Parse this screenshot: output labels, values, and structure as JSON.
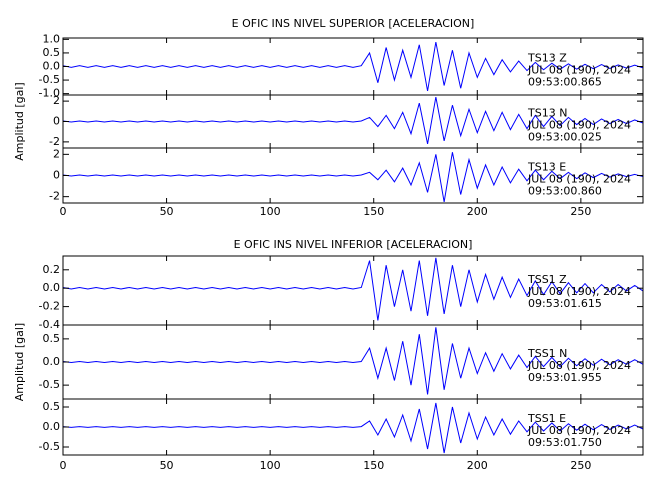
{
  "chart_data": [
    {
      "type": "line",
      "title": "E OFIC INS NIVEL SUPERIOR [ACELERACION]",
      "y_label": "Amplitud [gal]",
      "color": "#0000ff",
      "x": [
        0,
        4,
        8,
        12,
        16,
        20,
        24,
        28,
        32,
        36,
        40,
        44,
        48,
        52,
        56,
        60,
        64,
        68,
        72,
        76,
        80,
        84,
        88,
        92,
        96,
        100,
        104,
        108,
        112,
        116,
        120,
        124,
        128,
        132,
        136,
        140,
        144,
        148,
        152,
        156,
        160,
        164,
        168,
        172,
        176,
        180,
        184,
        188,
        192,
        196,
        200,
        204,
        208,
        212,
        216,
        220,
        224,
        228,
        232,
        236,
        240,
        244,
        248,
        252,
        256,
        260,
        264,
        268,
        272,
        276,
        280
      ],
      "xlim": [
        0,
        280
      ],
      "xticks": [
        0,
        50,
        100,
        150,
        200,
        250
      ],
      "panels": [
        {
          "ylim": [
            -1.05,
            1.05
          ],
          "yticks": [
            {
              "value": -1,
              "label": "-1.0"
            },
            -0.5,
            {
              "value": 0,
              "label": "0.0"
            },
            0.5,
            {
              "value": 1,
              "label": "1.0"
            }
          ],
          "labels": [
            "TS13   Z",
            "JUL 08 (190), 2024",
            "09:53:00.865"
          ],
          "values": [
            0.03,
            -0.03,
            0.03,
            -0.03,
            0.03,
            -0.03,
            0.03,
            -0.03,
            0.03,
            -0.03,
            0.03,
            -0.03,
            0.03,
            -0.03,
            0.03,
            -0.03,
            0.03,
            -0.03,
            0.03,
            -0.03,
            0.03,
            -0.03,
            0.03,
            -0.03,
            0.03,
            -0.03,
            0.03,
            -0.03,
            0.03,
            -0.03,
            0.03,
            -0.03,
            0.03,
            -0.03,
            0.03,
            -0.03,
            0.03,
            0.5,
            -0.6,
            0.7,
            -0.5,
            0.6,
            -0.4,
            0.8,
            -0.9,
            0.9,
            -0.7,
            0.6,
            -0.8,
            0.5,
            -0.4,
            0.3,
            -0.3,
            0.25,
            -0.2,
            0.2,
            -0.15,
            0.15,
            -0.12,
            0.12,
            -0.1,
            0.1,
            -0.1,
            0.08,
            -0.08,
            0.07,
            -0.07,
            0.06,
            -0.06,
            0.05,
            -0.05
          ]
        },
        {
          "ylim": [
            -2.6,
            2.6
          ],
          "yticks": [
            -2,
            0,
            2
          ],
          "labels": [
            "TS13   N",
            "JUL 08 (190), 2024",
            "09:53:00.025"
          ],
          "values": [
            0.05,
            -0.05,
            0.05,
            -0.05,
            0.05,
            -0.05,
            0.05,
            -0.05,
            0.05,
            -0.05,
            0.05,
            -0.05,
            0.05,
            -0.05,
            0.05,
            -0.05,
            0.05,
            -0.05,
            0.05,
            -0.05,
            0.05,
            -0.05,
            0.05,
            -0.05,
            0.05,
            -0.05,
            0.05,
            -0.05,
            0.05,
            -0.05,
            0.05,
            -0.05,
            0.05,
            -0.05,
            0.05,
            -0.05,
            0.05,
            0.4,
            -0.5,
            0.6,
            -0.7,
            0.9,
            -1.2,
            1.8,
            -2.2,
            2.4,
            -1.9,
            1.6,
            -1.4,
            1.2,
            -1.1,
            1.0,
            -0.9,
            0.9,
            -0.8,
            0.7,
            -0.7,
            0.6,
            -0.5,
            0.5,
            -0.4,
            0.4,
            -0.3,
            0.3,
            -0.3,
            0.25,
            -0.2,
            0.2,
            -0.2,
            0.15,
            -0.15
          ]
        },
        {
          "ylim": [
            -2.6,
            2.6
          ],
          "yticks": [
            -2,
            0,
            2
          ],
          "labels": [
            "TS13   E",
            "JUL 08 (190), 2024",
            "09:53:00.860"
          ],
          "values": [
            0.05,
            -0.05,
            0.05,
            -0.05,
            0.05,
            -0.05,
            0.05,
            -0.05,
            0.05,
            -0.05,
            0.05,
            -0.05,
            0.05,
            -0.05,
            0.05,
            -0.05,
            0.05,
            -0.05,
            0.05,
            -0.05,
            0.05,
            -0.05,
            0.05,
            -0.05,
            0.05,
            -0.05,
            0.05,
            -0.05,
            0.05,
            -0.05,
            0.05,
            -0.05,
            0.05,
            -0.05,
            0.05,
            -0.05,
            0.05,
            0.3,
            -0.4,
            0.5,
            -0.6,
            0.7,
            -0.9,
            1.2,
            -1.6,
            2.0,
            -2.5,
            2.2,
            -1.8,
            1.5,
            -1.2,
            1.0,
            -0.9,
            0.8,
            -0.7,
            0.6,
            -0.5,
            0.5,
            -0.4,
            0.4,
            -0.3,
            0.3,
            -0.3,
            0.25,
            -0.2,
            0.2,
            -0.15,
            0.15,
            -0.1,
            0.1,
            -0.1
          ]
        }
      ]
    },
    {
      "type": "line",
      "title": "E OFIC INS NIVEL INFERIOR [ACELERACION]",
      "y_label": "Amplitud [gal]",
      "color": "#0000ff",
      "x": [
        0,
        4,
        8,
        12,
        16,
        20,
        24,
        28,
        32,
        36,
        40,
        44,
        48,
        52,
        56,
        60,
        64,
        68,
        72,
        76,
        80,
        84,
        88,
        92,
        96,
        100,
        104,
        108,
        112,
        116,
        120,
        124,
        128,
        132,
        136,
        140,
        144,
        148,
        152,
        156,
        160,
        164,
        168,
        172,
        176,
        180,
        184,
        188,
        192,
        196,
        200,
        204,
        208,
        212,
        216,
        220,
        224,
        228,
        232,
        236,
        240,
        244,
        248,
        252,
        256,
        260,
        264,
        268,
        272,
        276,
        280
      ],
      "xlim": [
        0,
        280
      ],
      "xticks": [
        0,
        50,
        100,
        150,
        200,
        250
      ],
      "panels": [
        {
          "ylim": [
            -0.4,
            0.35
          ],
          "yticks": [
            -0.4,
            -0.2,
            {
              "value": 0,
              "label": "0.0"
            },
            0.2
          ],
          "labels": [
            "TSS1   Z",
            "JUL 08 (190), 2024",
            "09:53:01.615"
          ],
          "values": [
            0.008,
            -0.008,
            0.008,
            -0.008,
            0.008,
            -0.008,
            0.008,
            -0.008,
            0.008,
            -0.008,
            0.008,
            -0.008,
            0.008,
            -0.008,
            0.008,
            -0.008,
            0.008,
            -0.008,
            0.008,
            -0.008,
            0.008,
            -0.008,
            0.008,
            -0.008,
            0.008,
            -0.008,
            0.008,
            -0.008,
            0.008,
            -0.008,
            0.008,
            -0.008,
            0.008,
            -0.008,
            0.008,
            -0.008,
            0.008,
            0.3,
            -0.35,
            0.25,
            -0.2,
            0.2,
            -0.25,
            0.3,
            -0.3,
            0.33,
            -0.28,
            0.25,
            -0.2,
            0.2,
            -0.15,
            0.15,
            -0.12,
            0.12,
            -0.1,
            0.1,
            -0.08,
            0.08,
            -0.07,
            0.07,
            -0.06,
            0.06,
            -0.05,
            0.05,
            -0.05,
            0.04,
            -0.04,
            0.04,
            -0.03,
            0.03,
            -0.03
          ]
        },
        {
          "ylim": [
            -0.8,
            0.8
          ],
          "yticks": [
            -0.5,
            {
              "value": 0,
              "label": "0.0"
            },
            0.5
          ],
          "labels": [
            "TSS1   N",
            "JUL 08 (190), 2024",
            "09:53:01.955"
          ],
          "values": [
            0.01,
            -0.01,
            0.01,
            -0.01,
            0.01,
            -0.01,
            0.01,
            -0.01,
            0.01,
            -0.01,
            0.01,
            -0.01,
            0.01,
            -0.01,
            0.01,
            -0.01,
            0.01,
            -0.01,
            0.01,
            -0.01,
            0.01,
            -0.01,
            0.01,
            -0.01,
            0.01,
            -0.01,
            0.01,
            -0.01,
            0.01,
            -0.01,
            0.01,
            -0.01,
            0.01,
            -0.01,
            0.01,
            -0.01,
            0.01,
            0.3,
            -0.35,
            0.3,
            -0.4,
            0.45,
            -0.5,
            0.6,
            -0.7,
            0.75,
            -0.6,
            0.4,
            -0.35,
            0.3,
            -0.25,
            0.2,
            -0.2,
            0.18,
            -0.15,
            0.15,
            -0.12,
            0.12,
            -0.1,
            0.1,
            -0.1,
            0.08,
            -0.08,
            0.07,
            -0.07,
            0.06,
            -0.06,
            0.05,
            -0.05,
            0.05,
            -0.05
          ]
        },
        {
          "ylim": [
            -0.7,
            0.7
          ],
          "yticks": [
            -0.5,
            {
              "value": 0,
              "label": "0.0"
            },
            0.5
          ],
          "labels": [
            "TSS1   E",
            "JUL 08 (190), 2024",
            "09:53:01.750"
          ],
          "values": [
            0.01,
            -0.01,
            0.01,
            -0.01,
            0.01,
            -0.01,
            0.01,
            -0.01,
            0.01,
            -0.01,
            0.01,
            -0.01,
            0.01,
            -0.01,
            0.01,
            -0.01,
            0.01,
            -0.01,
            0.01,
            -0.01,
            0.01,
            -0.01,
            0.01,
            -0.01,
            0.01,
            -0.01,
            0.01,
            -0.01,
            0.01,
            -0.01,
            0.01,
            -0.01,
            0.01,
            -0.01,
            0.01,
            -0.01,
            0.01,
            0.15,
            -0.2,
            0.2,
            -0.25,
            0.3,
            -0.35,
            0.45,
            -0.55,
            0.6,
            -0.65,
            0.5,
            -0.4,
            0.35,
            -0.3,
            0.25,
            -0.2,
            0.2,
            -0.18,
            0.15,
            -0.12,
            0.12,
            -0.1,
            0.1,
            -0.1,
            0.08,
            -0.08,
            0.07,
            -0.07,
            0.06,
            -0.06,
            0.05,
            -0.05,
            0.05,
            -0.05
          ]
        }
      ]
    }
  ]
}
